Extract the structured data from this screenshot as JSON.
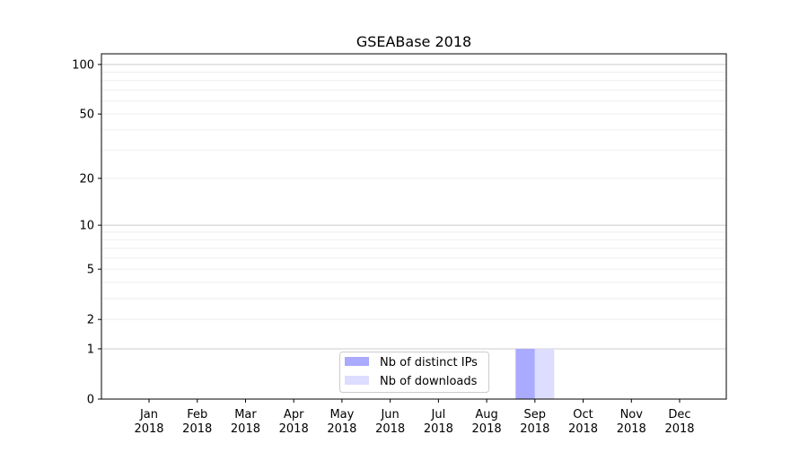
{
  "chart_data": {
    "type": "bar",
    "title": "GSEABase 2018",
    "xlabel": "",
    "ylabel": "",
    "y_scale": "log(1+y)",
    "ylim": [
      0,
      116
    ],
    "y_ticks": [
      0,
      1,
      2,
      5,
      10,
      20,
      50,
      100
    ],
    "y_tick_labels": [
      "0",
      "1",
      "2",
      "5",
      "10",
      "20",
      "50",
      "100"
    ],
    "grid": true,
    "legend_position": "bottom-center",
    "categories": [
      "Jan\n2018",
      "Feb\n2018",
      "Mar\n2018",
      "Apr\n2018",
      "May\n2018",
      "Jun\n2018",
      "Jul\n2018",
      "Aug\n2018",
      "Sep\n2018",
      "Oct\n2018",
      "Nov\n2018",
      "Dec\n2018"
    ],
    "category_months": [
      "Jan",
      "Feb",
      "Mar",
      "Apr",
      "May",
      "Jun",
      "Jul",
      "Aug",
      "Sep",
      "Oct",
      "Nov",
      "Dec"
    ],
    "category_year": "2018",
    "series": [
      {
        "name": "Nb of distinct IPs",
        "color": "#aaaaff",
        "values": [
          0,
          0,
          0,
          0,
          0,
          0,
          0,
          0,
          1,
          0,
          0,
          0
        ]
      },
      {
        "name": "Nb of downloads",
        "color": "#ddddff",
        "values": [
          0,
          0,
          0,
          0,
          0,
          0,
          0,
          0,
          1,
          0,
          0,
          0
        ]
      }
    ]
  }
}
